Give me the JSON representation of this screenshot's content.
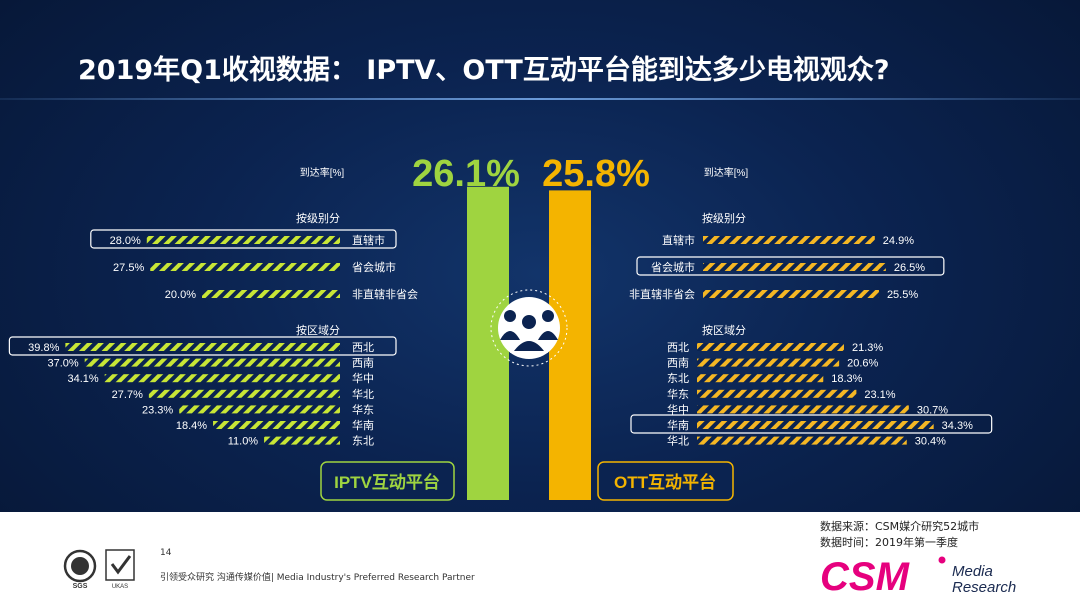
{
  "title": "2019年Q1收视数据： IPTV、OTT互动平台能到达多少电视观众?",
  "colors": {
    "iptv": "#9fd440",
    "iptv_hatch": "#c8e636",
    "ott": "#f4b400",
    "ott_hatch": "#f5b724",
    "highlight_border": "#ffffff",
    "brand": "#e6007e"
  },
  "chart_data": [
    {
      "type": "bar",
      "name": "IPTV互动平台",
      "headline": "26.1%",
      "headline_value": 26.1,
      "rate_label": "到达率[%]",
      "groups": [
        {
          "label": "按级别分",
          "categories": [
            "直辖市",
            "省会城市",
            "非直辖非省会"
          ],
          "values": [
            28.0,
            27.5,
            20.0
          ],
          "value_labels": [
            "28.0%",
            "27.5%",
            "20.0%"
          ],
          "highlighted": "直辖市"
        },
        {
          "label": "按区域分",
          "categories": [
            "西北",
            "西南",
            "华中",
            "华北",
            "华东",
            "华南",
            "东北"
          ],
          "values": [
            39.8,
            37.0,
            34.1,
            27.7,
            23.3,
            18.4,
            11.0
          ],
          "value_labels": [
            "39.8%",
            "37.0%",
            "34.1%",
            "27.7%",
            "23.3%",
            "18.4%",
            "11.0%"
          ],
          "highlighted": "西北"
        }
      ]
    },
    {
      "type": "bar",
      "name": "OTT互动平台",
      "headline": "25.8%",
      "headline_value": 25.8,
      "rate_label": "到达率[%]",
      "groups": [
        {
          "label": "按级别分",
          "categories": [
            "直辖市",
            "省会城市",
            "非直辖非省会"
          ],
          "values": [
            24.9,
            26.5,
            25.5
          ],
          "value_labels": [
            "24.9%",
            "26.5%",
            "25.5%"
          ],
          "highlighted": "省会城市"
        },
        {
          "label": "按区域分",
          "categories": [
            "西北",
            "西南",
            "东北",
            "华东",
            "华中",
            "华南",
            "华北"
          ],
          "values": [
            21.3,
            20.6,
            18.3,
            23.1,
            30.7,
            34.3,
            30.4
          ],
          "value_labels": [
            "21.3%",
            "20.6%",
            "18.3%",
            "23.1%",
            "30.7%",
            "34.3%",
            "30.4%"
          ],
          "highlighted": "华南"
        }
      ]
    }
  ],
  "footer": {
    "page_number": "14",
    "tagline": "引领受众研究  沟通传媒价值| Media Industry's Preferred Research Partner",
    "source": "数据来源：CSM媒介研究52城市",
    "time": "数据时间：2019年第一季度",
    "logo_text": "CSM",
    "logo_sub1": "Media",
    "logo_sub2": "Research",
    "cert1": "SGS",
    "cert2": "UKAS"
  }
}
